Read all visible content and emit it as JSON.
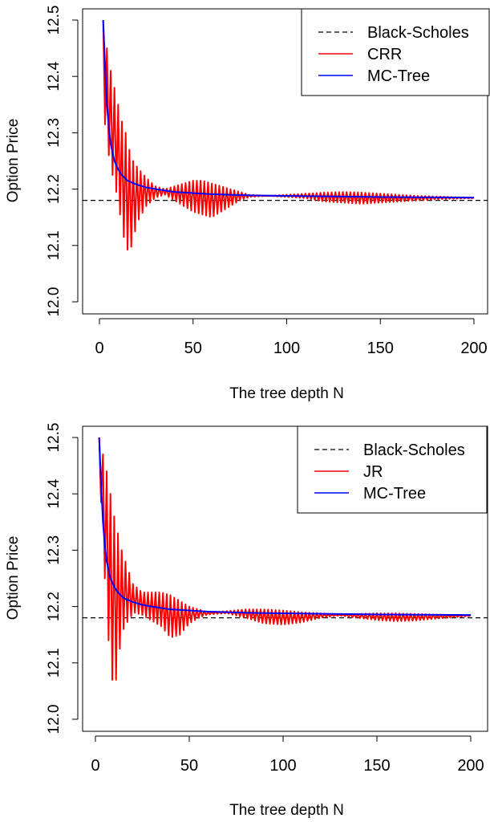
{
  "chart_data": [
    {
      "type": "line",
      "xlabel": "The tree depth N",
      "ylabel": "Option Price",
      "xlim": [
        0,
        200
      ],
      "ylim": [
        12.0,
        12.5
      ],
      "xticks": [
        "0",
        "50",
        "100",
        "150",
        "200"
      ],
      "yticks": [
        "12.0",
        "12.1",
        "12.2",
        "12.3",
        "12.4",
        "12.5"
      ],
      "legend_position": "top-right",
      "black_scholes": 12.18,
      "series": [
        {
          "name": "Black-Scholes",
          "color": "#000000",
          "style": "dashed"
        },
        {
          "name": "CRR",
          "color": "#ff0000",
          "style": "oscillating",
          "envelope": {
            "n": [
              2,
              4,
              6,
              8,
              10,
              12,
              14,
              16,
              18,
              20,
              25,
              30,
              35,
              40,
              45,
              50,
              55,
              60,
              65,
              70,
              75,
              80,
              90,
              100,
              110,
              120,
              130,
              140,
              150,
              160,
              170,
              180,
              190,
              200
            ],
            "upper": [
              12.5,
              12.45,
              12.41,
              12.38,
              12.35,
              12.32,
              12.3,
              12.27,
              12.25,
              12.24,
              12.22,
              12.205,
              12.2,
              12.205,
              12.21,
              12.215,
              12.215,
              12.21,
              12.205,
              12.2,
              12.195,
              12.19,
              12.188,
              12.19,
              12.192,
              12.194,
              12.195,
              12.194,
              12.192,
              12.19,
              12.188,
              12.187,
              12.186,
              12.185
            ],
            "lower": [
              12.35,
              12.28,
              12.24,
              12.21,
              12.18,
              12.13,
              12.1,
              12.085,
              12.11,
              12.14,
              12.17,
              12.185,
              12.19,
              12.18,
              12.17,
              12.16,
              12.155,
              12.15,
              12.16,
              12.17,
              12.18,
              12.186,
              12.188,
              12.186,
              12.184,
              12.178,
              12.176,
              12.174,
              12.176,
              12.178,
              12.18,
              12.182,
              12.183,
              12.184
            ]
          }
        },
        {
          "name": "MC-Tree",
          "color": "#0000ff",
          "style": "solid",
          "x": [
            2,
            3,
            4,
            5,
            6,
            8,
            10,
            12,
            15,
            20,
            25,
            30,
            40,
            50,
            60,
            70,
            80,
            100,
            150,
            200
          ],
          "y": [
            12.5,
            12.42,
            12.35,
            12.31,
            12.28,
            12.25,
            12.235,
            12.225,
            12.215,
            12.208,
            12.203,
            12.2,
            12.195,
            12.193,
            12.191,
            12.19,
            12.189,
            12.188,
            12.186,
            12.185
          ]
        }
      ]
    },
    {
      "type": "line",
      "xlabel": "The tree depth N",
      "ylabel": "Option Price",
      "xlim": [
        0,
        200
      ],
      "ylim": [
        12.0,
        12.5
      ],
      "xticks": [
        "0",
        "50",
        "100",
        "150",
        "200"
      ],
      "yticks": [
        "12.0",
        "12.1",
        "12.2",
        "12.3",
        "12.4",
        "12.5"
      ],
      "legend_position": "top-right",
      "black_scholes": 12.18,
      "series": [
        {
          "name": "Black-Scholes",
          "color": "#000000",
          "style": "dashed"
        },
        {
          "name": "JR",
          "color": "#ff0000",
          "style": "oscillating",
          "envelope": {
            "n": [
              2,
              4,
              6,
              8,
              10,
              12,
              14,
              16,
              18,
              20,
              25,
              30,
              35,
              40,
              45,
              50,
              55,
              60,
              70,
              80,
              90,
              100,
              110,
              120,
              130,
              140,
              150,
              160,
              170,
              180,
              190,
              200
            ],
            "upper": [
              12.5,
              12.47,
              12.44,
              12.4,
              12.36,
              12.33,
              12.3,
              12.28,
              12.26,
              12.24,
              12.225,
              12.225,
              12.225,
              12.22,
              12.21,
              12.2,
              12.195,
              12.19,
              12.192,
              12.195,
              12.195,
              12.193,
              12.19,
              12.188,
              12.186,
              12.187,
              12.188,
              12.188,
              12.187,
              12.186,
              12.185,
              12.185
            ],
            "lower": [
              12.45,
              12.32,
              12.18,
              12.1,
              12.04,
              12.1,
              12.15,
              12.17,
              12.175,
              12.19,
              12.185,
              12.175,
              12.165,
              12.145,
              12.15,
              12.17,
              12.18,
              12.186,
              12.188,
              12.18,
              12.17,
              12.168,
              12.172,
              12.18,
              12.184,
              12.18,
              12.176,
              12.174,
              12.175,
              12.178,
              12.181,
              12.183
            ]
          }
        },
        {
          "name": "MC-Tree",
          "color": "#0000ff",
          "style": "solid",
          "x": [
            2,
            3,
            4,
            5,
            6,
            8,
            10,
            12,
            15,
            20,
            25,
            30,
            40,
            50,
            60,
            70,
            80,
            100,
            150,
            200
          ],
          "y": [
            12.5,
            12.42,
            12.35,
            12.31,
            12.28,
            12.25,
            12.235,
            12.225,
            12.215,
            12.208,
            12.203,
            12.2,
            12.195,
            12.193,
            12.191,
            12.19,
            12.189,
            12.188,
            12.186,
            12.185
          ]
        }
      ]
    }
  ]
}
